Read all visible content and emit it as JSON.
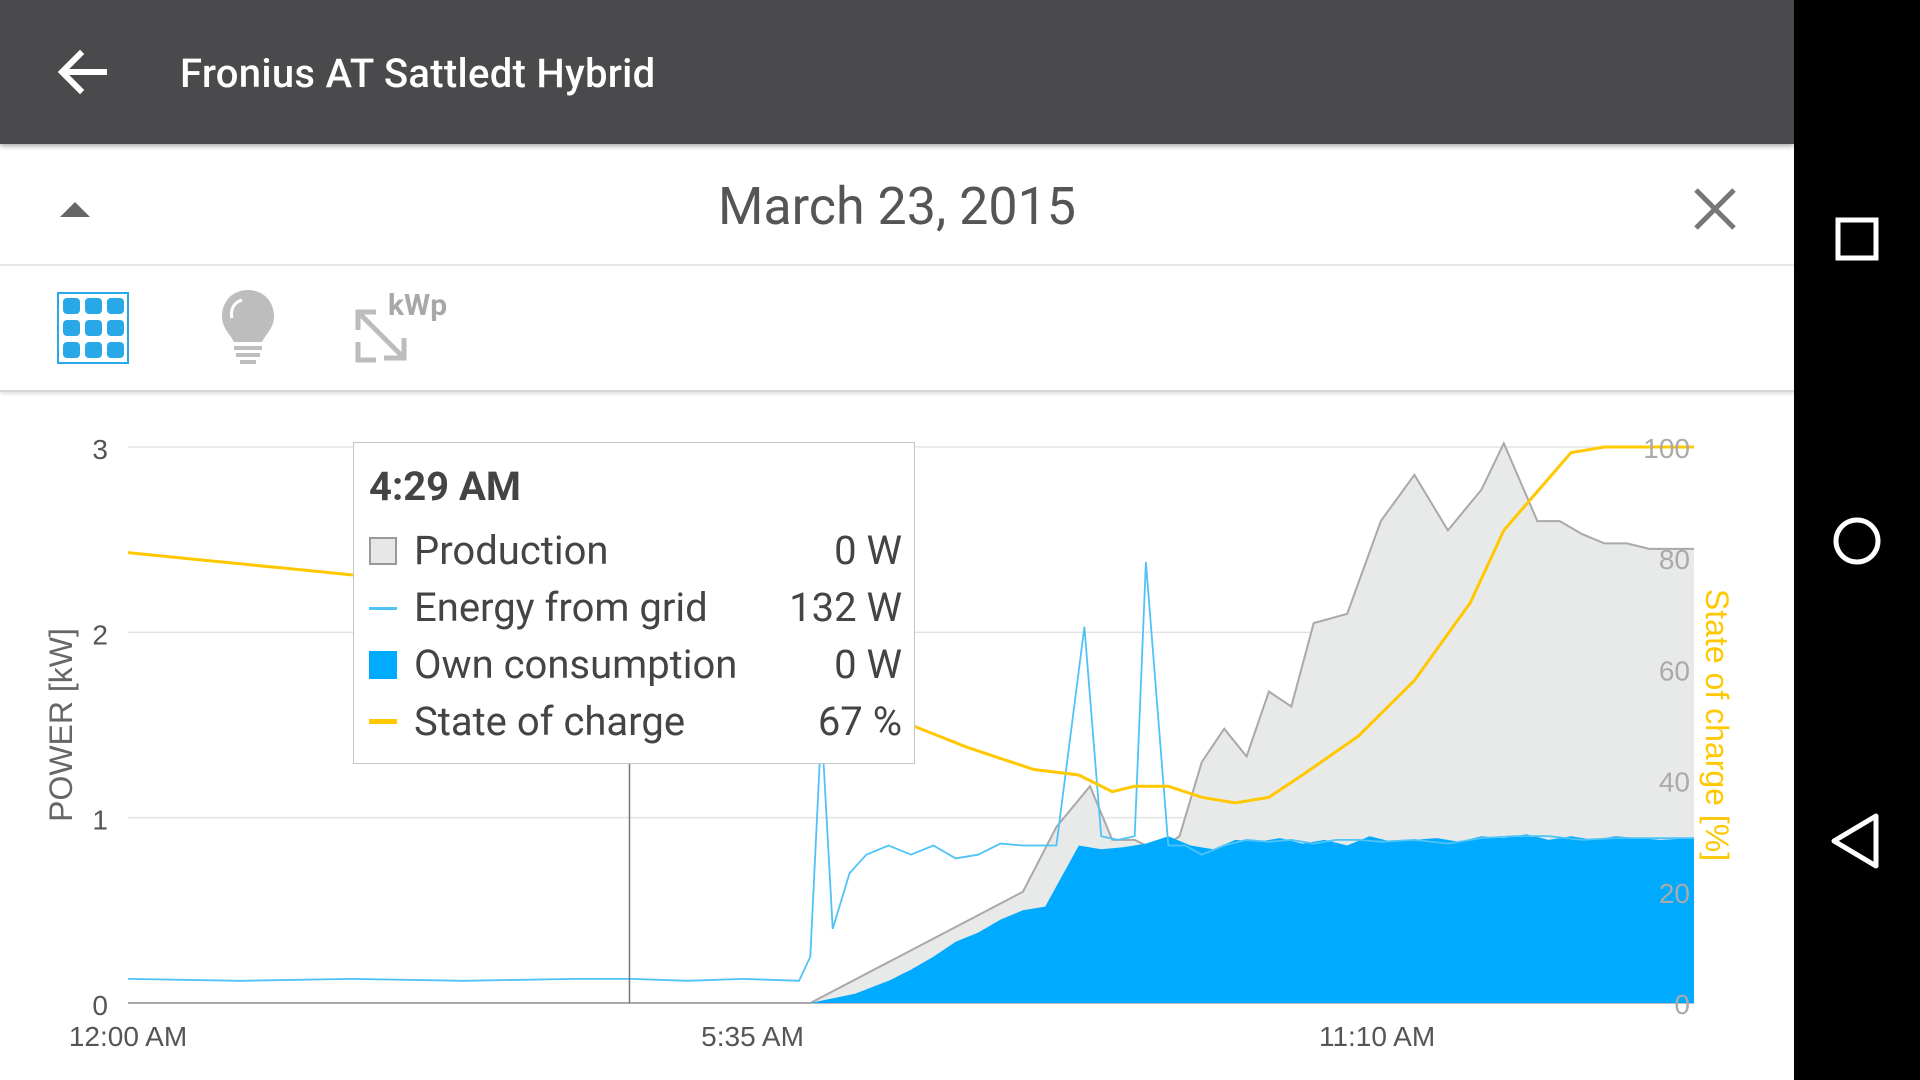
{
  "app": {
    "title": "Fronius AT Sattledt Hybrid",
    "date": "March 23, 2015",
    "kwp_label": "kWp",
    "icons": [
      "back-arrow-icon",
      "collapse-triangle-icon",
      "close-icon",
      "solar-panel-icon",
      "light-bulb-icon",
      "kwp-scale-icon",
      "square-recents-icon",
      "circle-home-icon",
      "triangle-back-icon"
    ]
  },
  "colors": {
    "appbar": "#4a4a4c",
    "own_consumption": "#00aaff",
    "production_fill": "#e8e9e9",
    "production_line": "#a9a9a9",
    "grid_line": "#4fc3f7",
    "state_of_charge": "#ffc800",
    "active_icon": "#29a8e8"
  },
  "tooltip": {
    "time": "4:29 AM",
    "rows": [
      {
        "label": "Production",
        "value": "0 W"
      },
      {
        "label": "Energy from grid",
        "value": "132 W"
      },
      {
        "label": "Own consumption",
        "value": "0 W"
      },
      {
        "label": "State of charge",
        "value": "67 %"
      }
    ]
  },
  "chart_data": {
    "type": "area",
    "xlabel": "",
    "ylabel": "POWER [kW]",
    "y2label": "State of charge [%]",
    "xlim_hours": [
      0,
      14
    ],
    "ylim": [
      0,
      3
    ],
    "y2lim": [
      0,
      100
    ],
    "x_ticks": [
      {
        "h": 0,
        "label": "12:00 AM"
      },
      {
        "h": 5.5833,
        "label": "5:35 AM"
      },
      {
        "h": 11.1667,
        "label": "11:10 AM"
      }
    ],
    "y_ticks": [
      0,
      1,
      2,
      3
    ],
    "y2_ticks": [
      0,
      20,
      40,
      60,
      80,
      100
    ],
    "grid": true,
    "cursor_hours": 4.4833,
    "series": [
      {
        "name": "Production",
        "kind": "area",
        "x": [
          0,
          6.1,
          8.0,
          8.3,
          8.6,
          8.8,
          9.0,
          9.2,
          9.4,
          9.6,
          9.8,
          10.0,
          10.2,
          10.4,
          10.6,
          10.9,
          11.2,
          11.5,
          11.8,
          12.1,
          12.3,
          12.6,
          12.8,
          13.0,
          13.2,
          13.4,
          13.6,
          14.0
        ],
        "y": [
          0,
          0,
          0.6,
          0.95,
          1.17,
          0.88,
          0.88,
          0.82,
          0.9,
          1.3,
          1.48,
          1.33,
          1.68,
          1.6,
          2.05,
          2.1,
          2.6,
          2.85,
          2.55,
          2.77,
          3.02,
          2.6,
          2.6,
          2.53,
          2.48,
          2.48,
          2.45,
          2.45
        ]
      },
      {
        "name": "Energy from grid",
        "kind": "line",
        "x": [
          0,
          1,
          2,
          3,
          4,
          4.5,
          5,
          5.5,
          6.0,
          6.1,
          6.2,
          6.3,
          6.45,
          6.6,
          6.8,
          7.0,
          7.2,
          7.4,
          7.6,
          7.8,
          8.0,
          8.3,
          8.55,
          8.7,
          8.85,
          9.0,
          9.1,
          9.3,
          9.45,
          9.6,
          9.8,
          10.0,
          10.2,
          10.4,
          10.6,
          10.8,
          11.0,
          11.2,
          11.5,
          11.8,
          12.1,
          12.4,
          12.7,
          13.0,
          13.3,
          13.6,
          14.0
        ],
        "y": [
          0.13,
          0.12,
          0.13,
          0.12,
          0.13,
          0.13,
          0.12,
          0.13,
          0.12,
          0.25,
          1.5,
          0.4,
          0.7,
          0.8,
          0.85,
          0.8,
          0.85,
          0.78,
          0.8,
          0.86,
          0.85,
          0.85,
          2.03,
          0.9,
          0.88,
          0.9,
          2.38,
          0.85,
          0.85,
          0.8,
          0.85,
          0.88,
          0.87,
          0.88,
          0.86,
          0.88,
          0.88,
          0.87,
          0.88,
          0.86,
          0.89,
          0.9,
          0.9,
          0.88,
          0.89,
          0.89,
          0.89
        ]
      },
      {
        "name": "Own consumption",
        "kind": "area",
        "x": [
          0,
          6.1,
          6.5,
          6.8,
          7.0,
          7.2,
          7.4,
          7.6,
          7.8,
          8.0,
          8.2,
          8.5,
          8.7,
          8.9,
          9.1,
          9.3,
          9.5,
          9.7,
          9.9,
          10.1,
          10.3,
          10.5,
          10.7,
          10.9,
          11.1,
          11.3,
          11.5,
          11.7,
          11.9,
          12.1,
          12.3,
          12.5,
          12.7,
          12.9,
          13.1,
          13.3,
          13.5,
          13.7,
          14.0
        ],
        "y": [
          0,
          0,
          0.05,
          0.12,
          0.18,
          0.25,
          0.33,
          0.38,
          0.45,
          0.5,
          0.52,
          0.85,
          0.83,
          0.84,
          0.86,
          0.9,
          0.85,
          0.83,
          0.88,
          0.87,
          0.89,
          0.86,
          0.88,
          0.85,
          0.9,
          0.87,
          0.88,
          0.89,
          0.87,
          0.9,
          0.89,
          0.91,
          0.88,
          0.9,
          0.88,
          0.9,
          0.89,
          0.88,
          0.89
        ]
      },
      {
        "name": "State of charge",
        "kind": "line",
        "axis": "right",
        "x": [
          0,
          0.5,
          1,
          1.5,
          2,
          2.5,
          3,
          3.5,
          4,
          4.4833,
          5,
          5.5,
          6,
          6.5,
          7,
          7.5,
          7.8,
          8.1,
          8.5,
          8.8,
          9,
          9.3,
          9.6,
          9.9,
          10.2,
          10.5,
          11,
          11.5,
          12,
          12.3,
          12.6,
          12.9,
          13.2,
          13.5,
          13.7,
          14.0
        ],
        "y": [
          81,
          80,
          79,
          78,
          77,
          76,
          75,
          73,
          71,
          67,
          64,
          61,
          58,
          53,
          50,
          46,
          44,
          42,
          41,
          38,
          39,
          39,
          37,
          36,
          37,
          41,
          48,
          58,
          72,
          85,
          92,
          99,
          100,
          100,
          100,
          100
        ]
      }
    ]
  }
}
